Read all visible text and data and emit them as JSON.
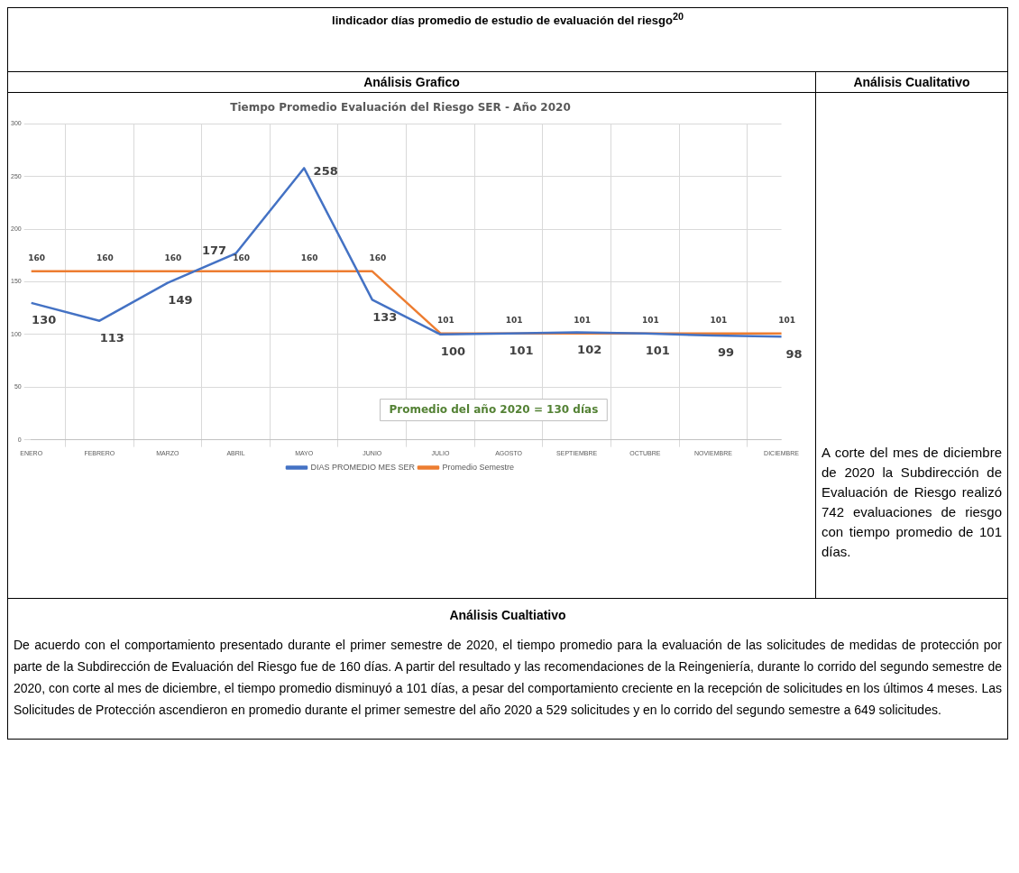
{
  "chart_data": {
    "type": "line",
    "title": "Tiempo Promedio Evaluación del Riesgo SER - Año 2020",
    "categories": [
      "ENERO",
      "FEBRERO",
      "MARZO",
      "ABRIL",
      "MAYO",
      "JUNIO",
      "JULIO",
      "AGOSTO",
      "SEPTIEMBRE",
      "OCTUBRE",
      "NOVIEMBRE",
      "DICIEMBRE"
    ],
    "series": [
      {
        "name": "DIAS PROMEDIO MES SER",
        "color": "#4472c4",
        "values": [
          130,
          113,
          149,
          177,
          258,
          133,
          100,
          101,
          102,
          101,
          99,
          98
        ]
      },
      {
        "name": "Promedio Semestre",
        "color": "#ed7d31",
        "values": [
          160,
          160,
          160,
          160,
          160,
          160,
          101,
          101,
          101,
          101,
          101,
          101
        ]
      }
    ],
    "ylim": [
      0,
      300
    ],
    "yticks": [
      0,
      50,
      100,
      150,
      200,
      250,
      300
    ],
    "grid": true,
    "legend": "bottom",
    "data_labels": true,
    "marker": "none",
    "line_style": "solid",
    "annotations": [
      "lindicador días promedio de estudio de evaluación del riesgo$^{20}$",
      "Análisis Grafico",
      "Análisis Cualitativo",
      "A corte del mes de diciembre de 2020 la Subdirección de Evaluación de Riesgo realizó 742 evaluaciones de riesgo con tiempo promedio de 101 días.",
      "Análisis Cualtiativo",
      " De acuerdo con el comportamiento presentado durante el primer semestre de 2020, el tiempo promedio para la evaluación de las solicitudes de medidas de protección por parte de la Subdirección de Evaluación del Riesgo fue de 160 días. A partir del resultado y las recomendaciones de la Reingeniería, durante lo corrido del segundo semestre de 2020, con corte al mes de diciembre, el tiempo promedio disminuyó a 101 días, a pesar del comportamiento creciente en la recepción de solicitudes en los últimos 4 meses.  Las Solicitudes de Protección ascendieron en promedio durante el primer semestre del año 2020 a 529 solicitudes y en lo corrido del segundo semestre a 649 solicitudes.",
      "Promedio del año 2020 = 130 días"
    ]
  }
}
